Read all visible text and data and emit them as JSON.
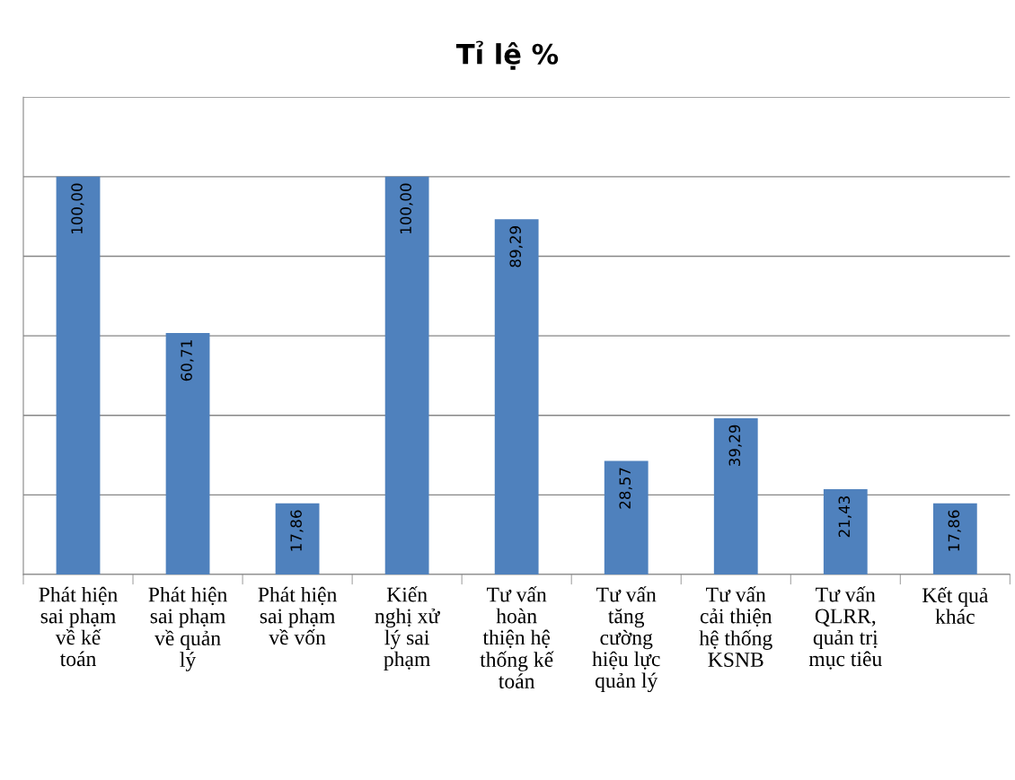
{
  "chart_data": {
    "type": "bar",
    "title": "Tỉ lệ %",
    "categories": [
      "Phát hiện\nsai phạm\nvề kế\ntoán",
      "Phát hiện\nsai phạm\nvề quản\nlý",
      "Phát hiện\nsai phạm\nvề vốn",
      "Kiến\nnghị xử\nlý sai\nphạm",
      "Tư vấn\nhoàn\nthiện hệ\nthống kế\ntoán",
      "Tư vấn\ntăng\ncường\nhiệu lực\nquản lý",
      "Tư vấn\ncải thiện\nhệ thống\nKSNB",
      "Tư vấn\nQLRR,\nquản trị\nmục tiêu",
      "Kết quả\nkhác"
    ],
    "values": [
      100.0,
      60.71,
      17.86,
      100.0,
      89.29,
      28.57,
      39.29,
      21.43,
      17.86
    ],
    "value_labels": [
      "100,00",
      "60,71",
      "17,86",
      "100,00",
      "89,29",
      "28,57",
      "39,29",
      "21,43",
      "17,86"
    ],
    "color": "#4f81bd",
    "ylim": [
      0,
      120
    ],
    "yticks": [
      {
        "value": 0,
        "label": null
      },
      {
        "value": 20,
        "label": null
      },
      {
        "value": 40,
        "label": null
      },
      {
        "value": 60,
        "label": null
      },
      {
        "value": 80,
        "label": null
      },
      {
        "value": 100,
        "label": null
      },
      {
        "value": 120,
        "label": null
      }
    ],
    "tick_labels": "x",
    "grid": "y"
  }
}
